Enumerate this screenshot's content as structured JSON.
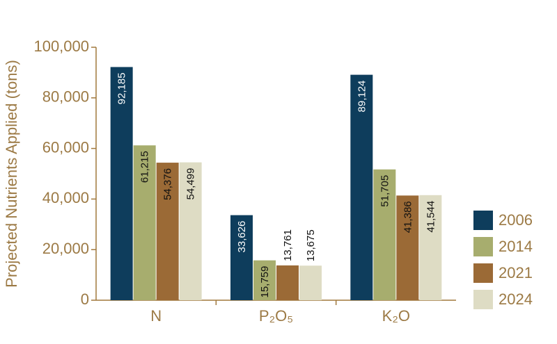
{
  "chart_data": {
    "type": "bar",
    "y_label": "Projected Nutrients Applied (tons)",
    "categories": [
      "N",
      "P₂O₅",
      "K₂O"
    ],
    "series": [
      {
        "name": "2006",
        "color": "#0e3d5c",
        "values": [
          92185,
          33626,
          89124
        ],
        "value_labels": [
          "92,185",
          "33,626",
          "89,124"
        ]
      },
      {
        "name": "2014",
        "color": "#a7ad6e",
        "values": [
          61215,
          15759,
          51705
        ],
        "value_labels": [
          "61,215",
          "15,759",
          "51,705"
        ]
      },
      {
        "name": "2021",
        "color": "#9b6a36",
        "values": [
          54376,
          13761,
          41386
        ],
        "value_labels": [
          "54,376",
          "13,761",
          "41,386"
        ]
      },
      {
        "name": "2024",
        "color": "#dedcc4",
        "values": [
          54499,
          13675,
          41544
        ],
        "value_labels": [
          "54,499",
          "13,675",
          "41,544"
        ]
      }
    ],
    "ylim": [
      0,
      100000
    ],
    "yticks": [
      0,
      {
        "value": 20000,
        "label": "20,000"
      },
      {
        "value": 40000,
        "label": "40,000"
      },
      {
        "value": 60000,
        "label": "60,000"
      },
      {
        "value": 80000,
        "label": "80,000"
      },
      {
        "value": 100000,
        "label": "100,000"
      }
    ],
    "legend": "right"
  }
}
